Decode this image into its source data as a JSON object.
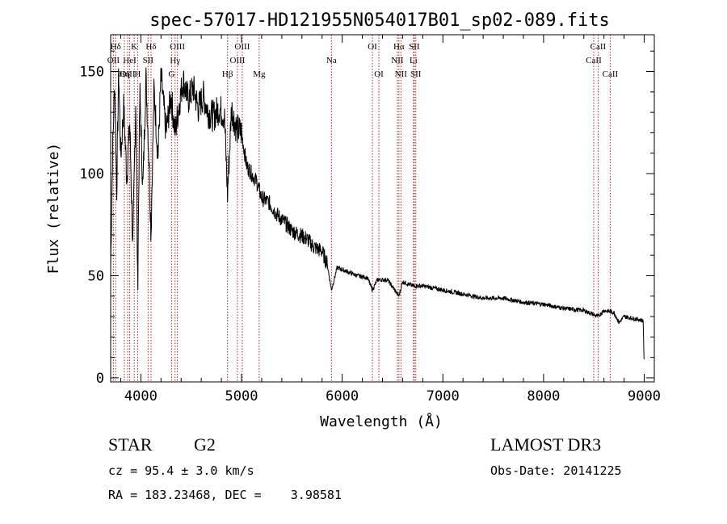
{
  "title": "spec-57017-HD121955N054017B01_sp02-089.fits",
  "colors": {
    "spectrum": "#000000",
    "line_marker": "#b22222",
    "axis": "#000000"
  },
  "chart_data": {
    "type": "line",
    "title": "spec-57017-HD121955N054017B01_sp02-089.fits",
    "xlabel": "Wavelength (Å)",
    "ylabel": "Flux (relative)",
    "xlim": [
      3700,
      9100
    ],
    "ylim": [
      -2,
      168
    ],
    "xticks": [
      4000,
      5000,
      6000,
      7000,
      8000,
      9000
    ],
    "xtick_labels": [
      "4000",
      "5000",
      "6000",
      "7000",
      "8000",
      "9000"
    ],
    "yticks": [
      0,
      50,
      100,
      150
    ],
    "ytick_labels": [
      "0",
      "50",
      "100",
      "150"
    ],
    "series": [
      {
        "name": "spectrum",
        "x": [
          3700,
          3720,
          3740,
          3760,
          3780,
          3800,
          3830,
          3860,
          3890,
          3920,
          3950,
          3968,
          3990,
          4020,
          4050,
          4080,
          4101,
          4130,
          4170,
          4200,
          4250,
          4300,
          4340,
          4380,
          4420,
          4470,
          4520,
          4570,
          4620,
          4670,
          4720,
          4780,
          4830,
          4861,
          4900,
          4950,
          5000,
          5050,
          5100,
          5150,
          5200,
          5270,
          5350,
          5430,
          5500,
          5580,
          5650,
          5720,
          5800,
          5850,
          5893,
          5950,
          6050,
          6150,
          6250,
          6300,
          6350,
          6450,
          6563,
          6600,
          6700,
          6800,
          6900,
          7000,
          7200,
          7400,
          7600,
          7800,
          8000,
          8200,
          8400,
          8542,
          8600,
          8700,
          8750,
          8800,
          8900,
          8990,
          9000
        ],
        "y": [
          55,
          112,
          145,
          92,
          150,
          108,
          133,
          98,
          125,
          62,
          138,
          42,
          140,
          92,
          148,
          108,
          70,
          142,
          108,
          148,
          120,
          138,
          120,
          134,
          146,
          136,
          142,
          132,
          138,
          130,
          128,
          132,
          128,
          90,
          132,
          122,
          120,
          104,
          100,
          96,
          88,
          86,
          80,
          76,
          72,
          70,
          68,
          64,
          62,
          56,
          43,
          54,
          52,
          50,
          49,
          43,
          48,
          48,
          40,
          47,
          45,
          45,
          44,
          43,
          41,
          39,
          39,
          37,
          36,
          34,
          33,
          30,
          33,
          32,
          27,
          30,
          29,
          28,
          3
        ]
      }
    ],
    "line_markers": [
      {
        "label": "Hδ",
        "x": 3750,
        "row": 1
      },
      {
        "label": "K",
        "x": 3934,
        "row": 1
      },
      {
        "label": "Hδ",
        "x": 4101,
        "row": 1
      },
      {
        "label": "OIII",
        "x": 4363,
        "row": 1
      },
      {
        "label": "OIII",
        "x": 5007,
        "row": 1
      },
      {
        "label": "OI",
        "x": 6300,
        "row": 1
      },
      {
        "label": "Hα",
        "x": 6563,
        "row": 1
      },
      {
        "label": "SII",
        "x": 6716,
        "row": 1
      },
      {
        "label": "CaII",
        "x": 8542,
        "row": 1
      },
      {
        "label": "OII",
        "x": 3727,
        "row": 2
      },
      {
        "label": "HeI",
        "x": 3889,
        "row": 2
      },
      {
        "label": "SII",
        "x": 4072,
        "row": 2
      },
      {
        "label": "Hγ",
        "x": 4340,
        "row": 2
      },
      {
        "label": "OIII",
        "x": 4959,
        "row": 2
      },
      {
        "label": "Na",
        "x": 5893,
        "row": 2
      },
      {
        "label": "NII",
        "x": 6548,
        "row": 2
      },
      {
        "label": "Li",
        "x": 6708,
        "row": 2
      },
      {
        "label": "CaII",
        "x": 8498,
        "row": 2
      },
      {
        "label": "OIII",
        "x": 3869,
        "row": 3
      },
      {
        "label": "Hη",
        "x": 3835,
        "row": 3
      },
      {
        "label": "H",
        "x": 3968,
        "row": 3
      },
      {
        "label": "G",
        "x": 4305,
        "row": 3
      },
      {
        "label": "Hβ",
        "x": 4861,
        "row": 3
      },
      {
        "label": "Mg",
        "x": 5175,
        "row": 3
      },
      {
        "label": "OI",
        "x": 6364,
        "row": 3
      },
      {
        "label": "NII",
        "x": 6583,
        "row": 3
      },
      {
        "label": "SII",
        "x": 6731,
        "row": 3
      },
      {
        "label": "CaII",
        "x": 8662,
        "row": 3
      }
    ]
  },
  "footer": {
    "object_type": "STAR",
    "subclass": "G2",
    "survey": "LAMOST DR3",
    "cz": "cz = 95.4 ± 3.0 km/s",
    "obs_date": "Obs-Date: 20141225",
    "coords": "RA = 183.23468, DEC =    3.98581"
  }
}
